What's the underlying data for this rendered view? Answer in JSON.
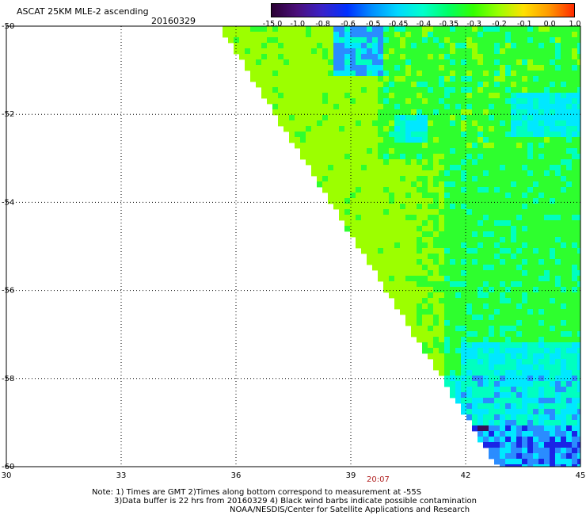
{
  "header": {
    "title": "ASCAT 25KM MLE-2 ascending",
    "date": "20160329"
  },
  "colorbar": {
    "labels": [
      "-15.0",
      "-1.0",
      "-0.8",
      "-0.6",
      "-0.5",
      "-0.45",
      "-0.4",
      "-0.35",
      "-0.3",
      "-0.2",
      "-0.1",
      "0.0",
      "1.0"
    ],
    "colors": [
      "#2a0033",
      "#4b0f7a",
      "#3a22c8",
      "#0030ff",
      "#0090ff",
      "#00d8ff",
      "#00ffcc",
      "#00ff66",
      "#33ff00",
      "#99ff00",
      "#ffe000",
      "#ff9900",
      "#ff2a00"
    ]
  },
  "map": {
    "lon_min": 30,
    "lon_max": 45,
    "lat_min": -60,
    "lat_max": -50,
    "x_ticks": [
      "30",
      "33",
      "36",
      "39",
      "42",
      "45"
    ],
    "y_ticks": [
      "-50",
      "-52",
      "-54",
      "-56",
      "-58",
      "-60"
    ],
    "grid": "dotted",
    "palette": {
      "dark": "#3a0b57",
      "blue": "#1a24e6",
      "mid": "#2a8cff",
      "cyan": "#00e8ff",
      "teal": "#00ffc0",
      "green": "#2eff2e",
      "lime": "#9cff00"
    }
  },
  "footer": {
    "time": "20:07",
    "note1": "Note: 1) Times are GMT 2)Times along bottom correspond to measurement at -55S",
    "note2": "3)Data buffer is 22 hrs from 20160329 4) Black wind barbs indicate possible contamination",
    "note3": "NOAA/NESDIS/Center for Satellite Applications and Research"
  }
}
